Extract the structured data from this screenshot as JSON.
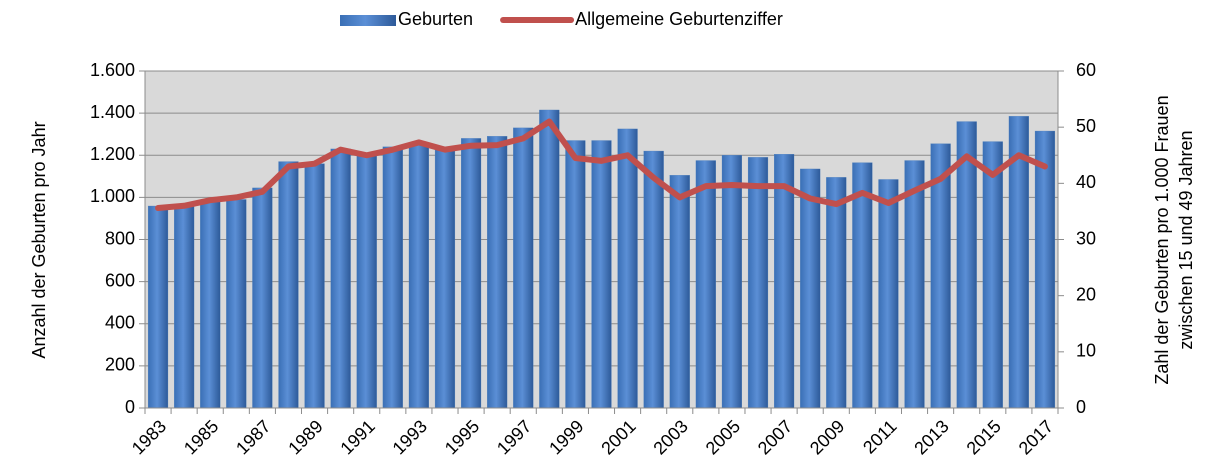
{
  "chart_data": {
    "type": "bar",
    "categories": [
      "1983",
      null,
      "1985",
      null,
      "1987",
      null,
      "1989",
      null,
      "1991",
      null,
      "1993",
      null,
      "1995",
      null,
      "1997",
      null,
      "1999",
      null,
      "2001",
      null,
      "2003",
      null,
      "2005",
      null,
      "2007",
      null,
      "2009",
      null,
      "2011",
      null,
      "2013",
      null,
      "2015",
      null,
      "2017"
    ],
    "series": [
      {
        "name": "Geburten",
        "type": "bar",
        "color": "#4f81bd",
        "values": [
          959,
          965,
          985,
          990,
          1045,
          1170,
          1160,
          1230,
          1200,
          1240,
          1260,
          1230,
          1280,
          1290,
          1330,
          1415,
          1270,
          1270,
          1325,
          1220,
          1105,
          1175,
          1200,
          1190,
          1205,
          1135,
          1095,
          1165,
          1085,
          1175,
          1255,
          1360,
          1265,
          1385,
          1315
        ]
      },
      {
        "name": "Allgemeine Geburtenziffer",
        "type": "line",
        "axis": "y2",
        "color": "#c0504d",
        "values": [
          35.6,
          36,
          37,
          37.5,
          38.5,
          43,
          43.5,
          46,
          45,
          46,
          47.3,
          46,
          46.7,
          46.8,
          48,
          51,
          44.5,
          44,
          45,
          41,
          37.5,
          39.5,
          39.7,
          39.5,
          39.5,
          37.3,
          36.3,
          38.3,
          36.5,
          38.7,
          40.8,
          44.8,
          41.5,
          45,
          43
        ]
      }
    ],
    "ylabel": "Anzahl der Geburten pro Jahr",
    "y2label": [
      "Zahl der Geburten pro 1.000 Frauen",
      "zwischen 15 und 49 Jahren"
    ],
    "ylim": [
      0,
      1600
    ],
    "yticks": [
      0,
      200,
      400,
      600,
      800,
      {
        "value": 1000,
        "label": "1.000"
      },
      {
        "value": 1200,
        "label": "1.200"
      },
      {
        "value": 1400,
        "label": "1.400"
      },
      {
        "value": 1600,
        "label": "1.600"
      }
    ],
    "y2lim": [
      0,
      60
    ],
    "y2ticks": [
      0,
      10,
      20,
      30,
      40,
      50,
      60
    ],
    "grid": true,
    "legend": "top"
  }
}
